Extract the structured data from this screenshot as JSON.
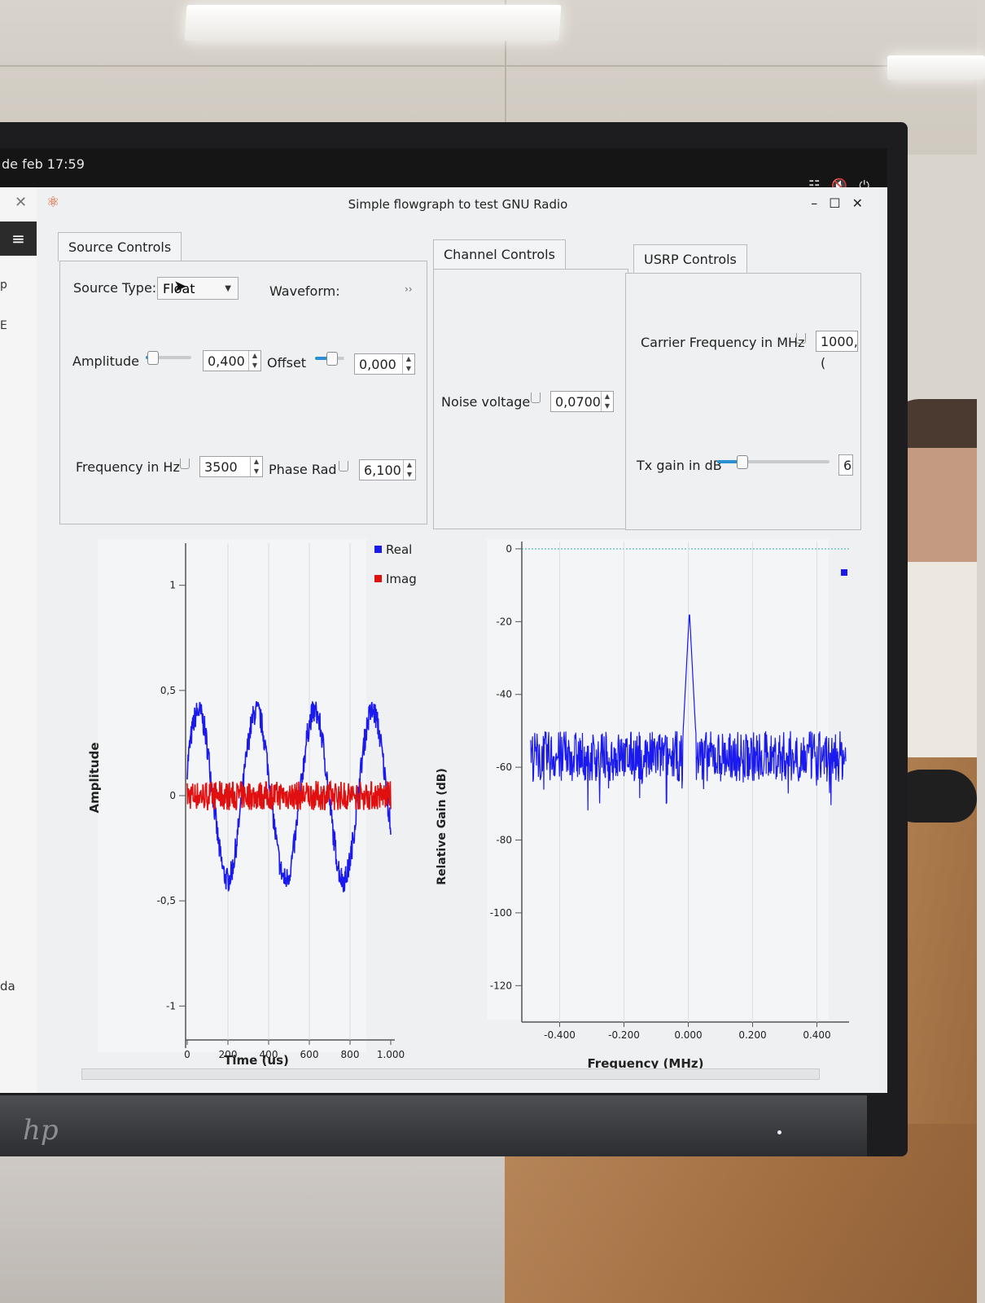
{
  "system_bar": {
    "clock": "de feb  17:59"
  },
  "left_panel": {
    "p": "p",
    "e": "E",
    "da": "da"
  },
  "window": {
    "title": "Simple flowgraph to test GNU Radio"
  },
  "source_controls": {
    "tab": "Source Controls",
    "source_type_label": "Source Type:",
    "source_type_value": "Float",
    "waveform_label": "Waveform:",
    "waveform_more": "››",
    "amplitude_label": "Amplitude",
    "amplitude_value": "0,400",
    "offset_label": "Offset",
    "offset_value": "0,000",
    "frequency_label": "Frequency in Hz",
    "frequency_value": "3500",
    "phase_label": "Phase Rad",
    "phase_value": "6,100"
  },
  "channel_controls": {
    "tab": "Channel Controls",
    "noise_label": "Noise voltage",
    "noise_value": "0,0700"
  },
  "usrp_controls": {
    "tab": "USRP Controls",
    "carrier_label": "Carrier Frequency in MHz",
    "carrier_value": "1000,(",
    "txgain_label": "Tx gain in dB",
    "txgain_value": "6"
  },
  "icons": [
    "close-icon",
    "menu-icon",
    "network-icon",
    "mute-icon",
    "power-icon",
    "minimize-icon",
    "maximize-icon",
    "gnuradio-icon",
    "cursor-icon"
  ],
  "chart_data": [
    {
      "type": "line",
      "xlabel": "Time (us)",
      "ylabel": "Amplitude",
      "xlim": [
        0,
        1000
      ],
      "ylim": [
        -1.2,
        1.2
      ],
      "x_ticks": [
        "0",
        "200",
        "400",
        "600",
        "800",
        "1.000"
      ],
      "y_ticks": [
        "1",
        "0,5",
        "0",
        "-0,5",
        "-1"
      ],
      "series": [
        {
          "name": "Real",
          "color": "#1a1aee",
          "kind": "sine",
          "amplitude": 0.4,
          "period_us": 285,
          "noise": 0.06
        },
        {
          "name": "Imag",
          "color": "#e01010",
          "kind": "noise",
          "amplitude": 0.0,
          "noise": 0.07
        }
      ]
    },
    {
      "type": "line",
      "xlabel": "Frequency (MHz)",
      "ylabel": "Relative Gain (dB)",
      "xlim": [
        -0.5,
        0.5
      ],
      "ylim": [
        -130,
        2
      ],
      "x_ticks": [
        "-0.400",
        "-0.200",
        "0.000",
        "0.200",
        "0.400"
      ],
      "y_ticks": [
        "0",
        "-20",
        "-40",
        "-60",
        "-80",
        "-100",
        "-120"
      ],
      "series": [
        {
          "name": "",
          "color": "#1a1aee",
          "noise_floor_db": -57,
          "peak_freq_mhz": 0.0035,
          "peak_db": -17
        }
      ]
    }
  ]
}
